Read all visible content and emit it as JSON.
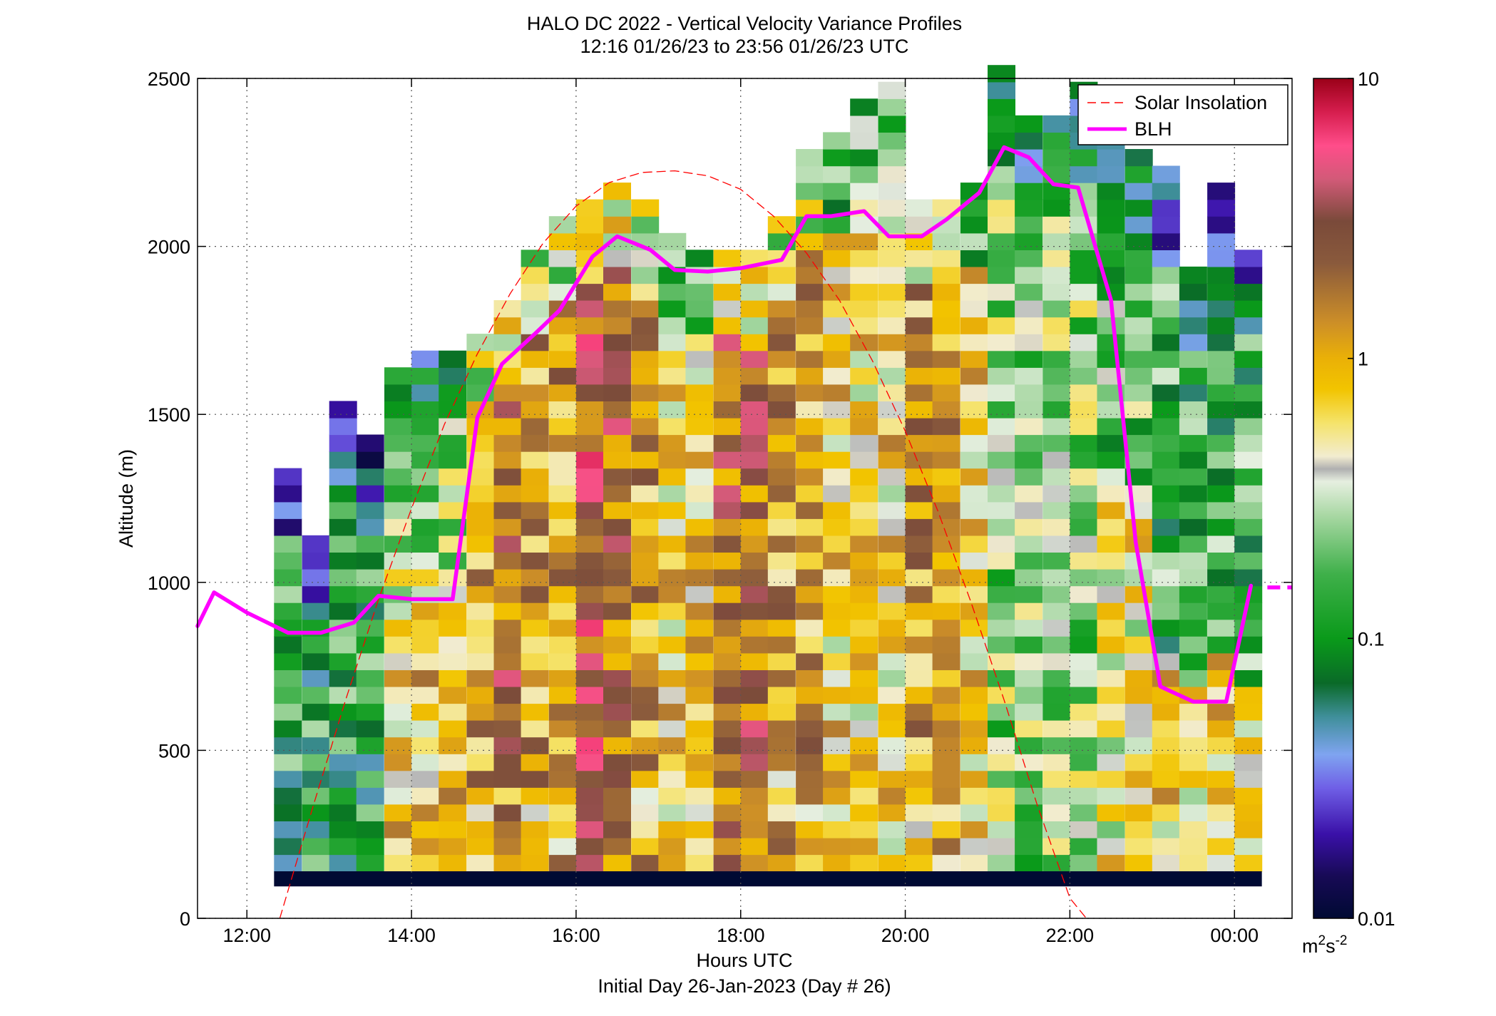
{
  "chart_data": {
    "type": "heatmap",
    "title": "HALO DC 2022 - Vertical Velocity Variance Profiles",
    "subtitle": "12:16 01/26/23 to 23:56 01/26/23  UTC",
    "xlabel": "Hours UTC",
    "xlabel2": "Initial Day 26-Jan-2023 (Day # 26)",
    "ylabel": "Altitude (m)",
    "xlim": [
      11.4,
      24.7
    ],
    "ylim": [
      0,
      2500
    ],
    "x_ticks": [
      12,
      14,
      16,
      18,
      20,
      22,
      24
    ],
    "x_tick_labels": [
      "12:00",
      "14:00",
      "16:00",
      "18:00",
      "20:00",
      "22:00",
      "00:00"
    ],
    "y_ticks": [
      0,
      500,
      1000,
      1500,
      2000,
      2500
    ],
    "y_tick_labels": [
      "0",
      "500",
      "1000",
      "1500",
      "2000",
      "2500"
    ],
    "grid": true,
    "legend_position": "top-right",
    "colorbar": {
      "scale": "log",
      "range": [
        0.01,
        10
      ],
      "tick_values": [
        0.01,
        0.1,
        1,
        10
      ],
      "tick_labels": [
        "0.01",
        "0.1",
        "1",
        "10"
      ],
      "unit_base": "m",
      "unit_exp1": "2",
      "unit_mid": "s",
      "unit_exp2": "-2"
    },
    "heatmap": {
      "x_start": 12.33,
      "bin_hours": 0.333,
      "y_base": 140,
      "bin_m": 50,
      "floor_bar_m": [
        95,
        140
      ],
      "floor_bar_value": 0.01,
      "profiles": [
        {
          "hour": 12.33,
          "top": 1300,
          "pattern": "stable"
        },
        {
          "hour": 12.67,
          "top": 1100,
          "pattern": "stable"
        },
        {
          "hour": 13.0,
          "top": 1500,
          "pattern": "stable"
        },
        {
          "hour": 13.33,
          "top": 1400,
          "pattern": "stable"
        },
        {
          "hour": 13.67,
          "top": 1600,
          "pattern": "transition"
        },
        {
          "hour": 14.0,
          "top": 1650,
          "pattern": "transition"
        },
        {
          "hour": 14.33,
          "top": 1650,
          "pattern": "transition"
        },
        {
          "hour": 14.67,
          "top": 1700,
          "pattern": "convective"
        },
        {
          "hour": 15.0,
          "top": 1800,
          "pattern": "convective-strong"
        },
        {
          "hour": 15.33,
          "top": 1950,
          "pattern": "convective"
        },
        {
          "hour": 15.67,
          "top": 2050,
          "pattern": "convective"
        },
        {
          "hour": 16.0,
          "top": 2100,
          "pattern": "convective-peak"
        },
        {
          "hour": 16.33,
          "top": 2150,
          "pattern": "convective-strong"
        },
        {
          "hour": 16.67,
          "top": 2100,
          "pattern": "convective"
        },
        {
          "hour": 17.0,
          "top": 2000,
          "pattern": "mixed"
        },
        {
          "hour": 17.33,
          "top": 1950,
          "pattern": "mixed"
        },
        {
          "hour": 17.67,
          "top": 1950,
          "pattern": "convective-strong"
        },
        {
          "hour": 18.0,
          "top": 1950,
          "pattern": "convective-strong"
        },
        {
          "hour": 18.33,
          "top": 2050,
          "pattern": "convective"
        },
        {
          "hour": 18.67,
          "top": 2250,
          "pattern": "convective"
        },
        {
          "hour": 19.0,
          "top": 2300,
          "pattern": "mixed"
        },
        {
          "hour": 19.33,
          "top": 2400,
          "pattern": "mixed"
        },
        {
          "hour": 19.67,
          "top": 2450,
          "pattern": "mixed"
        },
        {
          "hour": 20.0,
          "top": 2100,
          "pattern": "convective"
        },
        {
          "hour": 20.33,
          "top": 2100,
          "pattern": "convective"
        },
        {
          "hour": 20.67,
          "top": 2150,
          "pattern": "mixed"
        },
        {
          "hour": 21.0,
          "top": 2500,
          "pattern": "weakening"
        },
        {
          "hour": 21.33,
          "top": 2350,
          "pattern": "weakening"
        },
        {
          "hour": 21.67,
          "top": 2350,
          "pattern": "weakening"
        },
        {
          "hour": 22.0,
          "top": 2450,
          "pattern": "weakening"
        },
        {
          "hour": 22.33,
          "top": 2300,
          "pattern": "decaying"
        },
        {
          "hour": 22.67,
          "top": 2250,
          "pattern": "decaying"
        },
        {
          "hour": 23.0,
          "top": 2200,
          "pattern": "stable-late"
        },
        {
          "hour": 23.33,
          "top": 1900,
          "pattern": "stable-late"
        },
        {
          "hour": 23.67,
          "top": 2150,
          "pattern": "stable-late"
        },
        {
          "hour": 24.0,
          "top": 1950,
          "pattern": "stable-late"
        }
      ]
    },
    "series": [
      {
        "name": "Solar Insolation",
        "style": "dashed",
        "color": "#ff0000",
        "x": [
          12.4,
          12.8,
          13.2,
          13.6,
          14.0,
          14.4,
          14.8,
          15.2,
          15.6,
          16.0,
          16.4,
          16.8,
          17.2,
          17.6,
          18.0,
          18.4,
          18.8,
          19.2,
          19.6,
          20.0,
          20.4,
          20.8,
          21.2,
          21.6,
          22.0,
          22.2
        ],
        "y": [
          0,
          330,
          650,
          950,
          1220,
          1470,
          1680,
          1860,
          2010,
          2120,
          2190,
          2220,
          2225,
          2210,
          2170,
          2090,
          1980,
          1840,
          1660,
          1450,
          1210,
          940,
          650,
          340,
          60,
          0
        ]
      },
      {
        "name": "BLH",
        "style": "solid",
        "color": "#ff00ff",
        "x": [
          11.4,
          11.6,
          12.0,
          12.5,
          12.9,
          13.3,
          13.6,
          14.0,
          14.5,
          14.8,
          15.1,
          15.5,
          15.8,
          16.2,
          16.5,
          16.9,
          17.2,
          17.6,
          18.0,
          18.5,
          18.8,
          19.1,
          19.5,
          19.8,
          20.2,
          20.5,
          20.9,
          21.2,
          21.5,
          21.8,
          22.1,
          22.5,
          22.8,
          23.1,
          23.5,
          23.9,
          24.2
        ],
        "y": [
          870,
          970,
          910,
          850,
          850,
          880,
          960,
          950,
          950,
          1490,
          1650,
          1740,
          1810,
          1970,
          2030,
          1990,
          1930,
          1925,
          1935,
          1960,
          2090,
          2090,
          2105,
          2030,
          2030,
          2080,
          2160,
          2295,
          2265,
          2185,
          2175,
          1840,
          1120,
          690,
          645,
          645,
          990
        ]
      }
    ],
    "blh_right_segment": {
      "x": [
        24.4,
        24.7
      ],
      "y": [
        985,
        985
      ]
    }
  }
}
